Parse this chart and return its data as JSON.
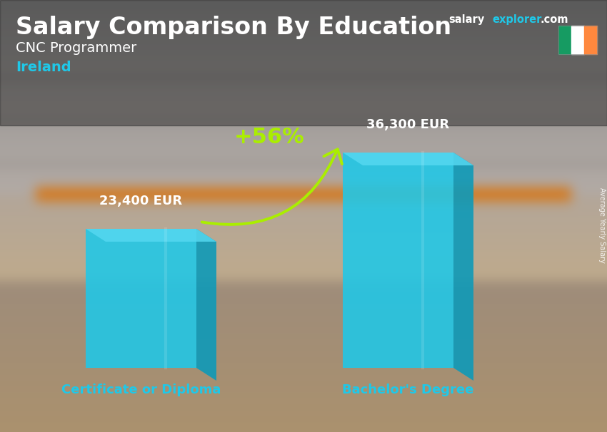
{
  "title": "Salary Comparison By Education",
  "subtitle1": "CNC Programmer",
  "subtitle2": "Ireland",
  "site_salary": "salary",
  "site_explorer": "explorer",
  "site_com": ".com",
  "categories": [
    "Certificate or Diploma",
    "Bachelor's Degree"
  ],
  "values": [
    23400,
    36300
  ],
  "labels": [
    "23,400 EUR",
    "36,300 EUR"
  ],
  "pct_change": "+56%",
  "bar_front_color": "#1FC8E8",
  "bar_side_color": "#0E9AB8",
  "bar_top_color": "#60DDEF",
  "text_color_white": "#ffffff",
  "text_color_cyan": "#1FC8E8",
  "text_color_green": "#AAEE00",
  "side_label": "Average Yearly Salary",
  "flag_green": "#169B62",
  "flag_white": "#FFFFFF",
  "flag_orange": "#FF883E",
  "bg_sky_color": "#8899AA",
  "bg_floor_color": "#887766",
  "bg_mid_color": "#9A9080"
}
